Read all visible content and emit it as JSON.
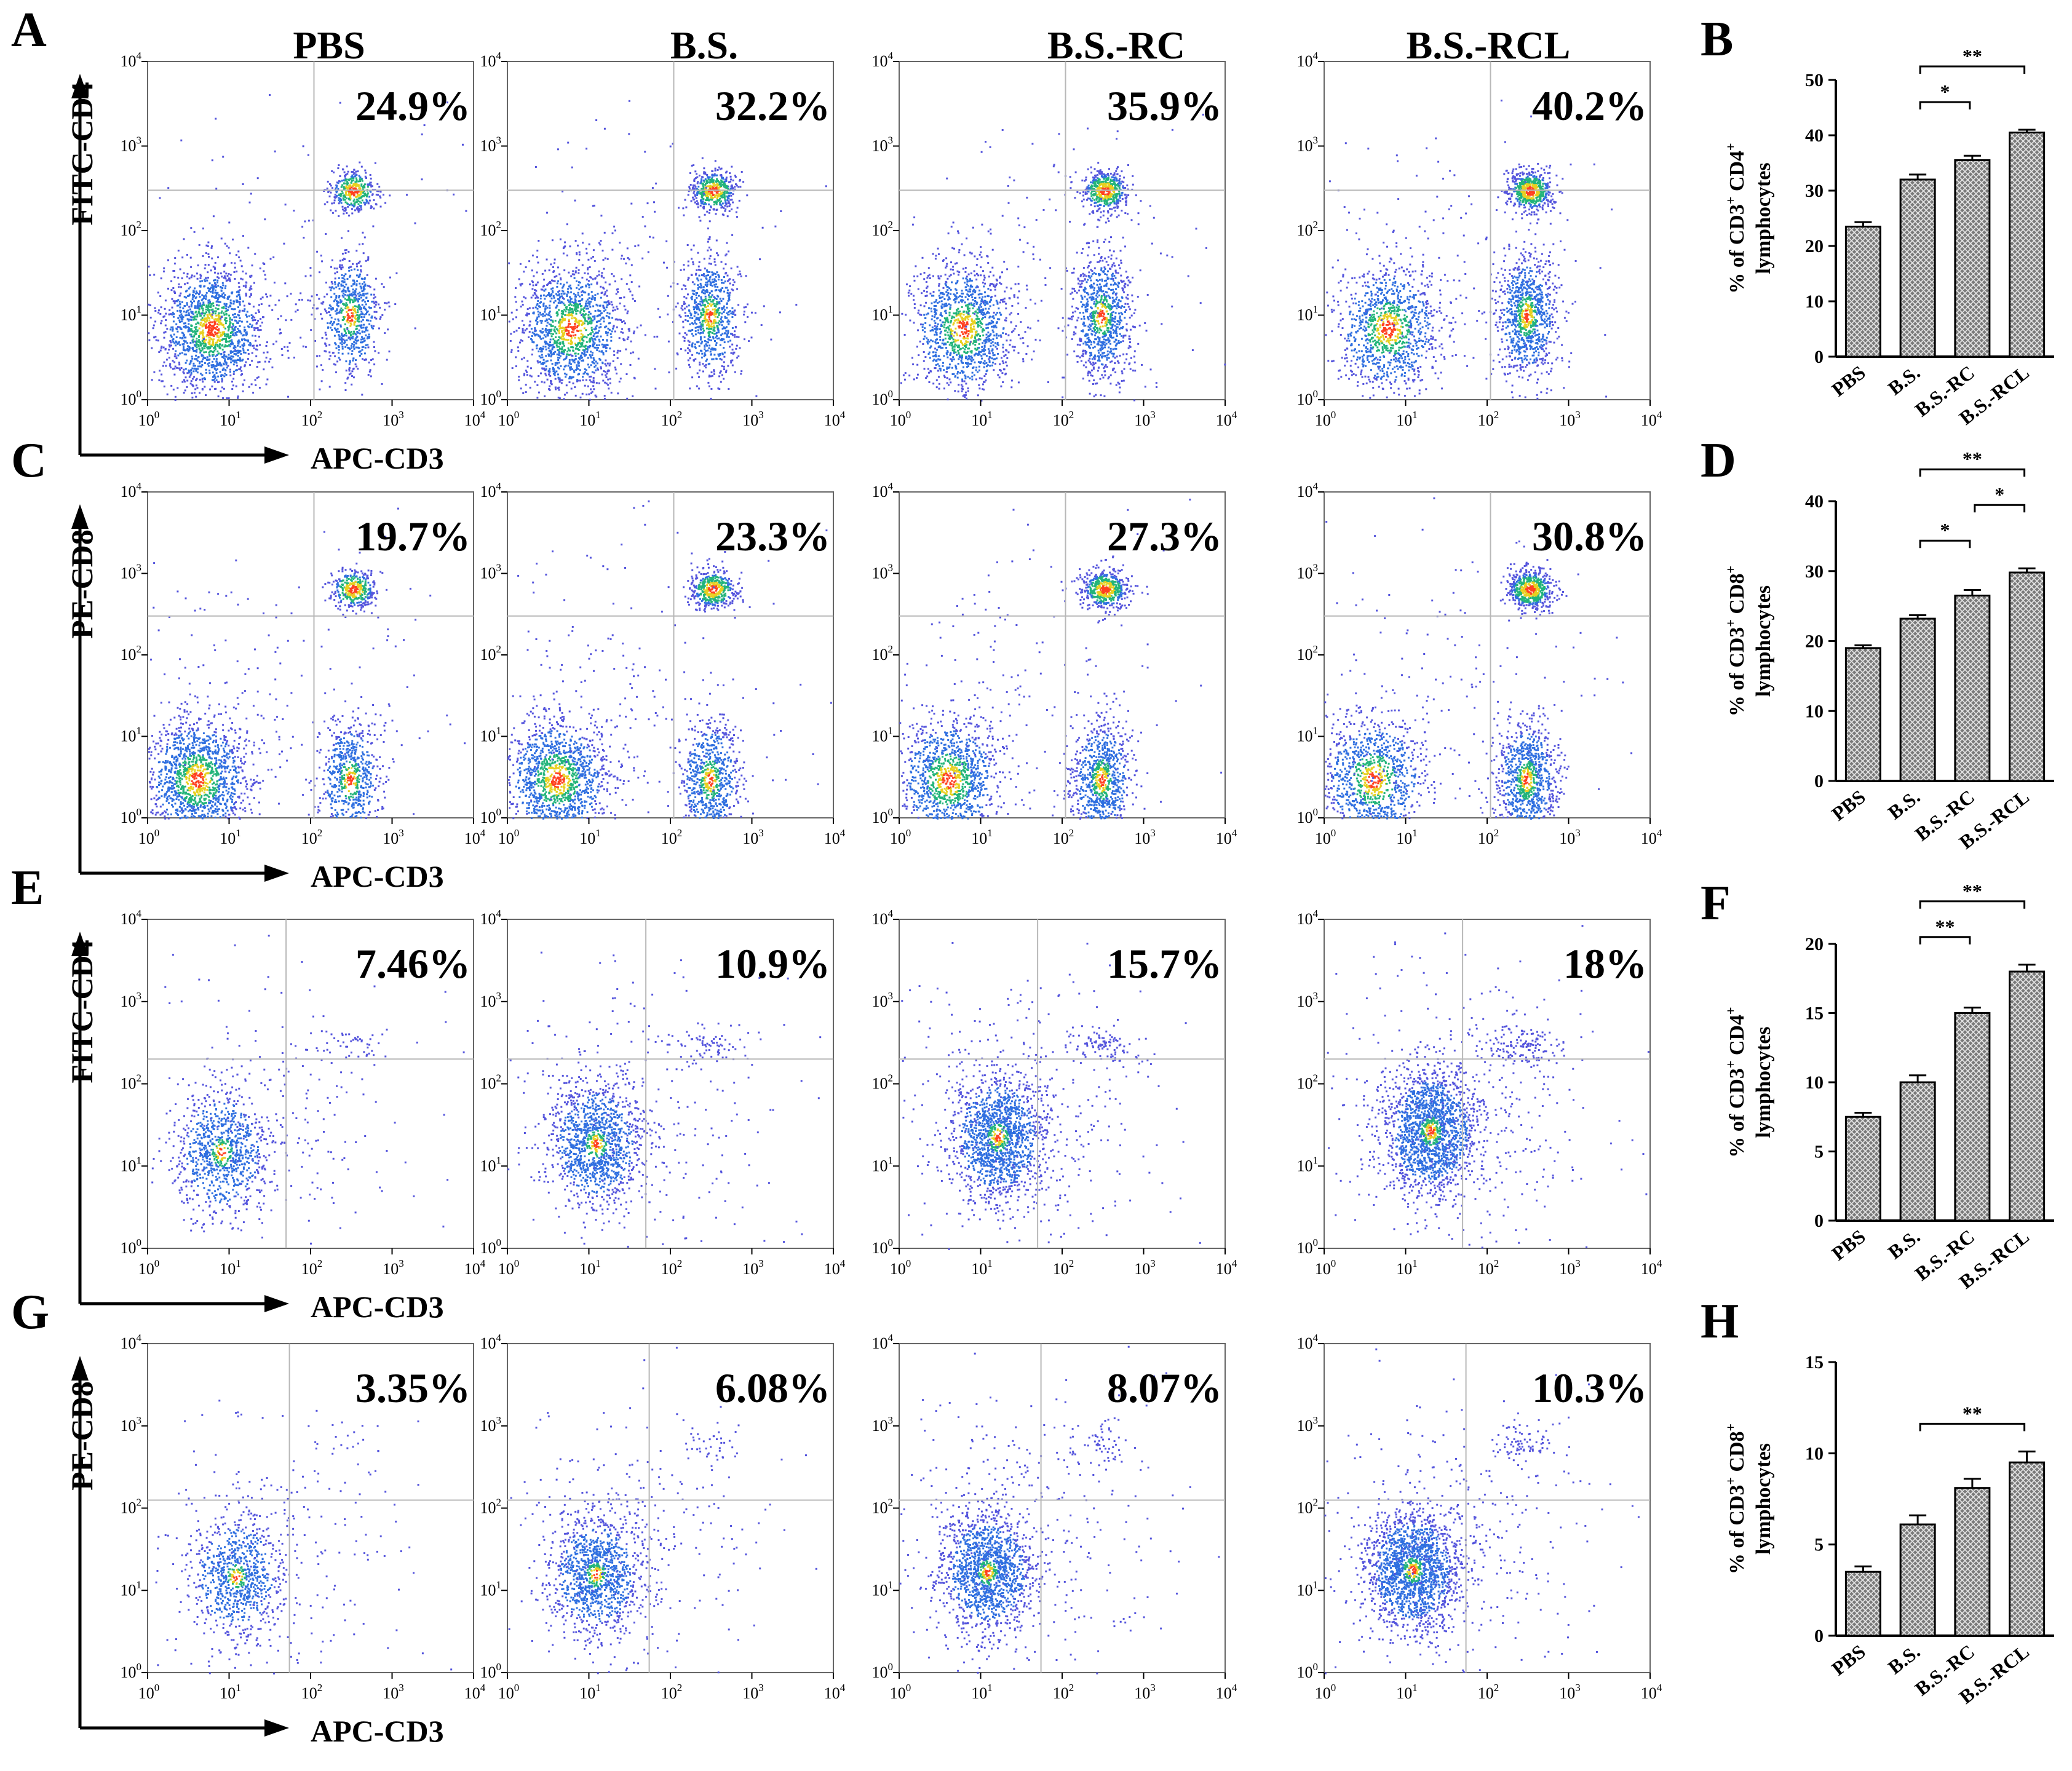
{
  "column_headers": [
    "PBS",
    "B.S.",
    "B.S.-RC",
    "B.S.-RCL"
  ],
  "colors": {
    "dot_sparse": "#5555dd",
    "dot_mid": "#2f6fe0",
    "dot_green": "#22b47a",
    "dot_yellow": "#e8d020",
    "dot_core": "#ff4020",
    "gate": "#b8b8b8",
    "bar_fill": "#808080"
  },
  "flow_rows": [
    {
      "id": "A",
      "letter": "A",
      "y_label": "FITC-CD4",
      "x_label": "APC-CD3",
      "percentages": [
        "24.9%",
        "32.2%",
        "35.9%",
        "40.2%"
      ]
    },
    {
      "id": "C",
      "letter": "C",
      "y_label": "PE-CD8",
      "x_label": "APC-CD3",
      "percentages": [
        "19.7%",
        "23.3%",
        "27.3%",
        "30.8%"
      ]
    },
    {
      "id": "E",
      "letter": "E",
      "y_label": "FITC-CD4",
      "x_label": "APC-CD3",
      "percentages": [
        "7.46%",
        "10.9%",
        "15.7%",
        "18%"
      ]
    },
    {
      "id": "G",
      "letter": "G",
      "y_label": "PE-CD8",
      "x_label": "APC-CD3",
      "percentages": [
        "3.35%",
        "6.08%",
        "8.07%",
        "10.3%"
      ]
    }
  ],
  "flow_axis": {
    "tick_base": "10",
    "tick_exponents": [
      "0",
      "1",
      "2",
      "3",
      "4"
    ]
  },
  "chart_data": [
    {
      "type": "scatter",
      "panel": "A",
      "subtype": "flow cytometry dot plots",
      "x_label": "APC-CD3",
      "y_label": "FITC-CD4",
      "scale": "log",
      "xlim": [
        1,
        10000
      ],
      "ylim": [
        1,
        10000
      ],
      "groups": [
        "PBS",
        "B.S.",
        "B.S.-RC",
        "B.S.-RCL"
      ],
      "upper_right_percent": [
        24.9,
        32.2,
        35.9,
        40.2
      ]
    },
    {
      "type": "bar",
      "panel": "B",
      "letter": "B",
      "categories": [
        "PBS",
        "B.S.",
        "B.S.-RC",
        "B.S.-RCL"
      ],
      "values": [
        23.5,
        32,
        35.5,
        40.5
      ],
      "errors": [
        0.8,
        0.9,
        0.8,
        0.5
      ],
      "ylim": [
        0,
        50
      ],
      "yticks": [
        0,
        10,
        20,
        30,
        40,
        50
      ],
      "ylabel": "% of CD3+ CD4+ lymphocytes",
      "ylabel_line1": "% of CD3",
      "ylabel_mid": " CD4",
      "ylabel_line2": "lymphocytes",
      "ylabel_sup": "+",
      "significance": [
        {
          "from": 1,
          "to": 2,
          "label": "*"
        },
        {
          "from": 1,
          "to": 3,
          "label": "**"
        }
      ]
    },
    {
      "type": "scatter",
      "panel": "C",
      "subtype": "flow cytometry dot plots",
      "x_label": "APC-CD3",
      "y_label": "PE-CD8",
      "scale": "log",
      "xlim": [
        1,
        10000
      ],
      "ylim": [
        1,
        10000
      ],
      "groups": [
        "PBS",
        "B.S.",
        "B.S.-RC",
        "B.S.-RCL"
      ],
      "upper_right_percent": [
        19.7,
        23.3,
        27.3,
        30.8
      ]
    },
    {
      "type": "bar",
      "panel": "D",
      "letter": "D",
      "categories": [
        "PBS",
        "B.S.",
        "B.S.-RC",
        "B.S.-RCL"
      ],
      "values": [
        19,
        23.2,
        26.5,
        29.8
      ],
      "errors": [
        0.4,
        0.5,
        0.8,
        0.6
      ],
      "ylim": [
        0,
        40
      ],
      "yticks": [
        0,
        10,
        20,
        30,
        40
      ],
      "ylabel": "% of CD3+ CD8+ lymphocytes",
      "ylabel_line1": "% of CD3",
      "ylabel_mid": " CD8",
      "ylabel_line2": "lymphocytes",
      "ylabel_sup": "+",
      "significance": [
        {
          "from": 1,
          "to": 2,
          "label": "*"
        },
        {
          "from": 2,
          "to": 3,
          "label": "*"
        },
        {
          "from": 1,
          "to": 3,
          "label": "**"
        }
      ]
    },
    {
      "type": "scatter",
      "panel": "E",
      "subtype": "flow cytometry dot plots",
      "x_label": "APC-CD3",
      "y_label": "FITC-CD4",
      "scale": "log",
      "xlim": [
        1,
        10000
      ],
      "ylim": [
        1,
        10000
      ],
      "groups": [
        "PBS",
        "B.S.",
        "B.S.-RC",
        "B.S.-RCL"
      ],
      "upper_right_percent": [
        7.46,
        10.9,
        15.7,
        18
      ]
    },
    {
      "type": "bar",
      "panel": "F",
      "letter": "F",
      "categories": [
        "PBS",
        "B.S.",
        "B.S.-RC",
        "B.S.-RCL"
      ],
      "values": [
        7.5,
        10,
        15,
        18
      ],
      "errors": [
        0.3,
        0.5,
        0.4,
        0.5
      ],
      "ylim": [
        0,
        20
      ],
      "yticks": [
        0,
        5,
        10,
        15,
        20
      ],
      "ylabel": "% of CD3+ CD4+ lymphocytes",
      "ylabel_line1": "% of CD3",
      "ylabel_mid": " CD4",
      "ylabel_line2": "lymphocytes",
      "ylabel_sup": "+",
      "significance": [
        {
          "from": 1,
          "to": 2,
          "label": "**"
        },
        {
          "from": 1,
          "to": 3,
          "label": "**"
        }
      ]
    },
    {
      "type": "scatter",
      "panel": "G",
      "subtype": "flow cytometry dot plots",
      "x_label": "APC-CD3",
      "y_label": "PE-CD8",
      "scale": "log",
      "xlim": [
        1,
        10000
      ],
      "ylim": [
        1,
        10000
      ],
      "groups": [
        "PBS",
        "B.S.",
        "B.S.-RC",
        "B.S.-RCL"
      ],
      "upper_right_percent": [
        3.35,
        6.08,
        8.07,
        10.3
      ]
    },
    {
      "type": "bar",
      "panel": "H",
      "letter": "H",
      "categories": [
        "PBS",
        "B.S.",
        "B.S.-RC",
        "B.S.-RCL"
      ],
      "values": [
        3.5,
        6.1,
        8.1,
        9.5
      ],
      "errors": [
        0.3,
        0.5,
        0.5,
        0.6
      ],
      "ylim": [
        0,
        15
      ],
      "yticks": [
        0,
        5,
        10,
        15
      ],
      "ylabel": "% of CD3+ CD8+ lymphocytes",
      "ylabel_line1": "% of CD3",
      "ylabel_mid": " CD8",
      "ylabel_line2": "lymphocytes",
      "ylabel_sup": "+",
      "significance": [
        {
          "from": 1,
          "to": 3,
          "label": "**"
        }
      ]
    }
  ]
}
